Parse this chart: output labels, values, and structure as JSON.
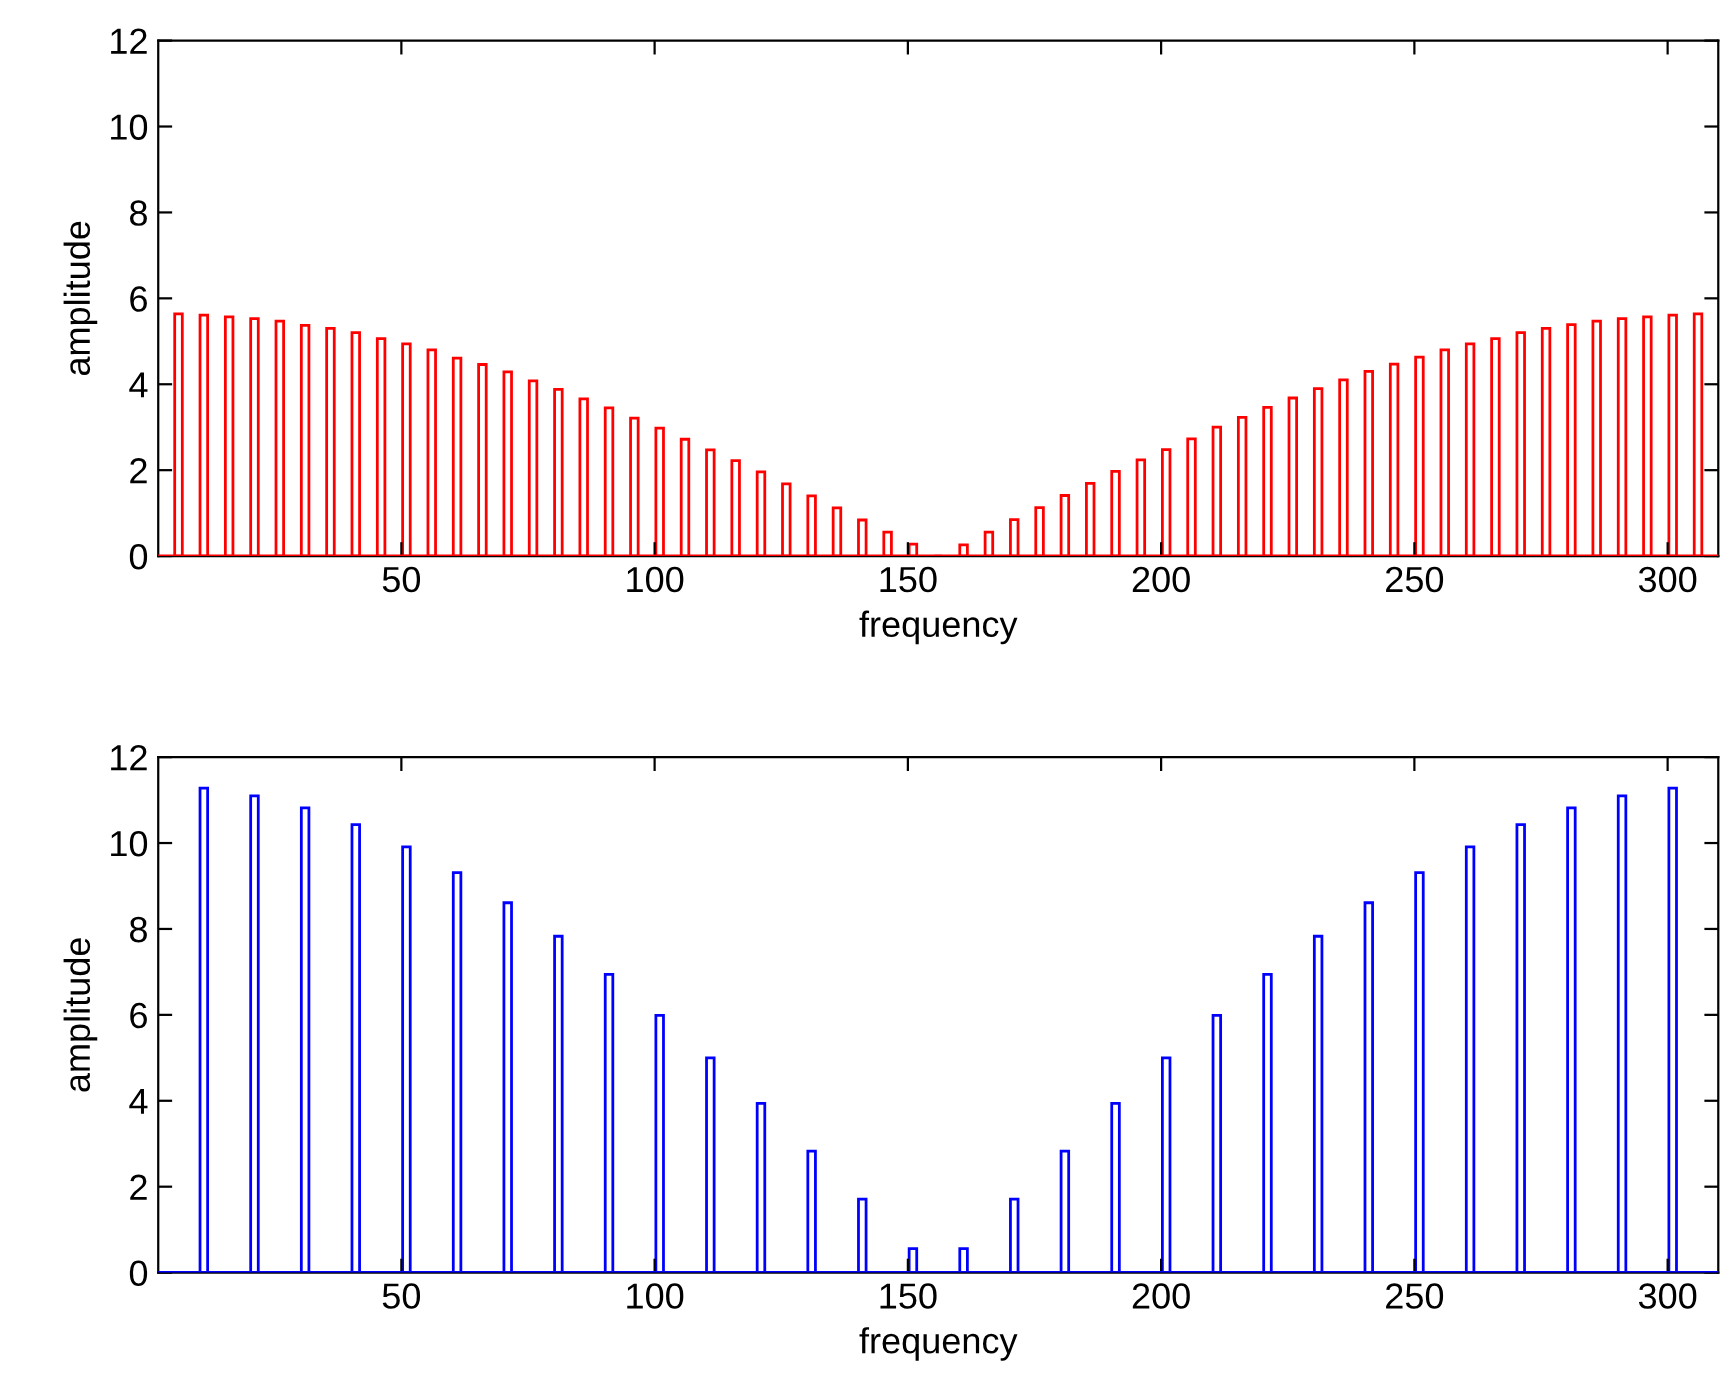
{
  "chart_data": [
    {
      "type": "bar",
      "xlabel": "frequency",
      "ylabel": "amplitude",
      "xlim": [
        2,
        310
      ],
      "ylim": [
        0,
        12
      ],
      "xticks": [
        50,
        100,
        150,
        200,
        250,
        300
      ],
      "yticks": [
        0,
        2,
        4,
        6,
        8,
        10,
        12
      ],
      "grid": false,
      "legend": false,
      "x": [
        6,
        11,
        16,
        21,
        26,
        31,
        36,
        41,
        46,
        51,
        56,
        61,
        66,
        71,
        76,
        81,
        86,
        91,
        96,
        101,
        106,
        111,
        116,
        121,
        126,
        131,
        136,
        141,
        146,
        151,
        156,
        161,
        166,
        171,
        176,
        181,
        186,
        191,
        196,
        201,
        206,
        211,
        216,
        221,
        226,
        231,
        236,
        241,
        246,
        251,
        256,
        261,
        266,
        271,
        276,
        281,
        286,
        291,
        296,
        301,
        306
      ],
      "series": [
        {
          "color": "#ff0000",
          "values": [
            5.64,
            5.61,
            5.57,
            5.53,
            5.47,
            5.37,
            5.3,
            5.2,
            5.06,
            4.94,
            4.8,
            4.61,
            4.46,
            4.29,
            4.08,
            3.88,
            3.66,
            3.45,
            3.21,
            2.98,
            2.72,
            2.47,
            2.22,
            1.96,
            1.68,
            1.4,
            1.12,
            0.84,
            0.56,
            0.28,
            0,
            0.26,
            0.56,
            0.85,
            1.13,
            1.41,
            1.69,
            1.97,
            2.24,
            2.48,
            2.73,
            3.0,
            3.23,
            3.46,
            3.68,
            3.9,
            4.1,
            4.3,
            4.47,
            4.63,
            4.8,
            4.94,
            5.06,
            5.2,
            5.3,
            5.39,
            5.47,
            5.53,
            5.57,
            5.61,
            5.64
          ]
        }
      ],
      "ref_lines": [
        {
          "axis": "y",
          "value": 0,
          "color": "#ff0000"
        }
      ]
    },
    {
      "type": "bar",
      "xlabel": "frequency",
      "ylabel": "amplitude",
      "xlim": [
        2,
        310
      ],
      "ylim": [
        0,
        12
      ],
      "xticks": [
        50,
        100,
        150,
        200,
        250,
        300
      ],
      "yticks": [
        0,
        2,
        4,
        6,
        8,
        10,
        12
      ],
      "grid": false,
      "legend": false,
      "x": [
        11,
        21,
        31,
        41,
        51,
        61,
        71,
        81,
        91,
        101,
        111,
        121,
        131,
        141,
        151,
        161,
        171,
        181,
        191,
        201,
        211,
        221,
        231,
        241,
        251,
        261,
        271,
        281,
        291,
        301
      ],
      "series": [
        {
          "color": "#0000ff",
          "values": [
            11.28,
            11.1,
            10.82,
            10.43,
            9.91,
            9.31,
            8.61,
            7.83,
            6.94,
            5.99,
            5.0,
            3.94,
            2.83,
            1.71,
            0.56,
            0.56,
            1.71,
            2.83,
            3.94,
            5.0,
            5.99,
            6.94,
            7.83,
            8.61,
            9.31,
            9.91,
            10.43,
            10.82,
            11.1,
            11.28
          ]
        }
      ],
      "ref_lines": [
        {
          "axis": "y",
          "value": 0,
          "color": "#0000ff"
        }
      ]
    }
  ]
}
